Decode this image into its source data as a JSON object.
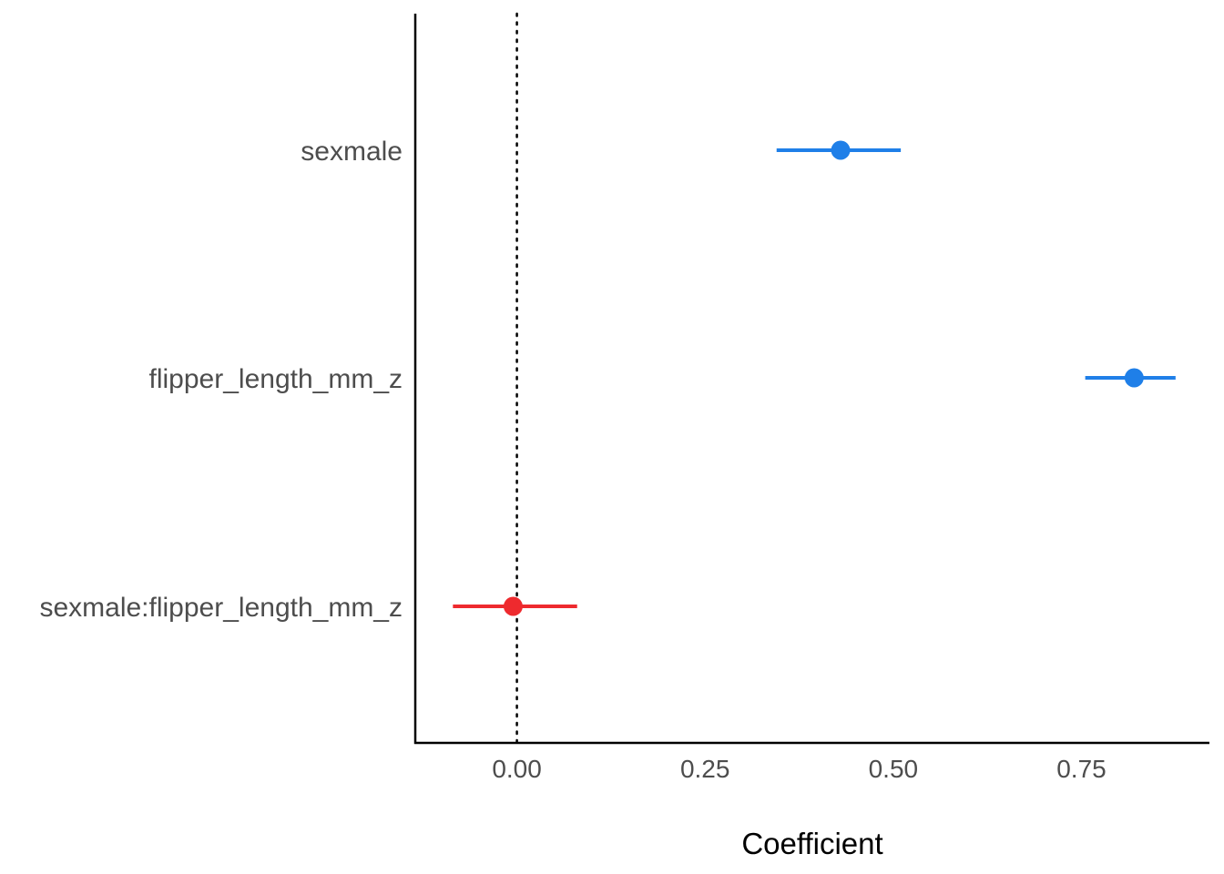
{
  "chart_data": {
    "type": "scatter",
    "subtype": "coefficient-plot",
    "title": "",
    "xlabel": "Coefficient",
    "ylabel": "",
    "xlim": [
      -0.135,
      0.92
    ],
    "x_ticks": [
      0.0,
      0.25,
      0.5,
      0.75
    ],
    "x_tick_labels": [
      "0.00",
      "0.25",
      "0.50",
      "0.75"
    ],
    "reference_line": {
      "x": 0,
      "style": "dotted"
    },
    "grid": false,
    "legend": "none",
    "terms": [
      {
        "label": "sexmale",
        "estimate": 0.43,
        "ci_low": 0.345,
        "ci_high": 0.51,
        "color": "#1f7fe8"
      },
      {
        "label": "flipper_length_mm_z",
        "estimate": 0.82,
        "ci_low": 0.755,
        "ci_high": 0.875,
        "color": "#1f7fe8"
      },
      {
        "label": "sexmale:flipper_length_mm_z",
        "estimate": -0.005,
        "ci_low": -0.085,
        "ci_high": 0.08,
        "color": "#ee2a2e"
      }
    ]
  }
}
